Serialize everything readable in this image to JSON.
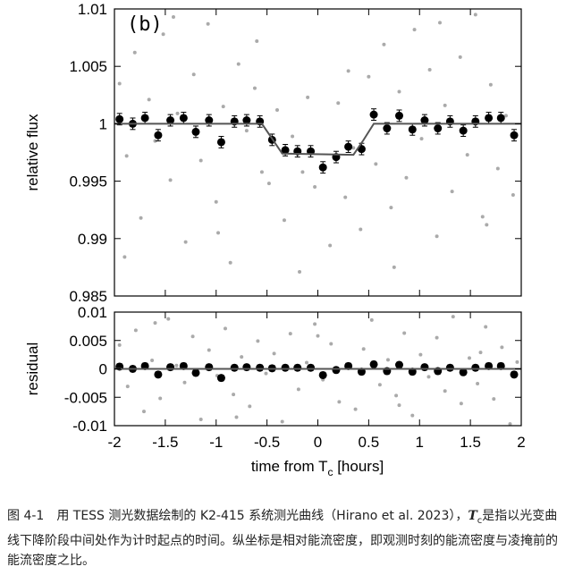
{
  "chart_data": [
    {
      "type": "scatter",
      "panel_label": "(b)",
      "ylabel": "relative flux",
      "xlim": [
        -2,
        2
      ],
      "ylim": [
        0.985,
        1.01
      ],
      "xticks": [
        -2,
        -1.5,
        -1,
        -0.5,
        0,
        0.5,
        1,
        1.5,
        2
      ],
      "yticks": [
        0.985,
        0.99,
        0.995,
        1,
        1.005,
        1.01
      ],
      "series": [
        {
          "mark": "dot",
          "color": "#aaaaaa",
          "x": [
            -1.95,
            -1.88,
            -1.8,
            -1.74,
            -1.66,
            -1.6,
            -1.52,
            -1.45,
            -1.38,
            -1.3,
            -1.22,
            -1.15,
            -1.08,
            -1.0,
            -0.93,
            -0.86,
            -0.78,
            -0.7,
            -0.62,
            -0.55,
            -0.48,
            -0.4,
            -0.33,
            -0.25,
            -0.18,
            -0.1,
            -0.03,
            0.05,
            0.12,
            0.2,
            0.27,
            0.35,
            0.42,
            0.5,
            0.57,
            0.65,
            0.72,
            0.8,
            0.87,
            0.95,
            1.02,
            1.1,
            1.17,
            1.25,
            1.32,
            1.4,
            1.47,
            1.55,
            1.62,
            1.7,
            1.77,
            1.85,
            1.92,
            -1.9,
            -1.42,
            -0.98,
            -0.6,
            -0.15,
            0.3,
            0.75,
            1.2,
            1.66
          ],
          "values": [
            1.0035,
            0.9972,
            1.0062,
            0.9918,
            1.0021,
            0.9985,
            1.0078,
            0.9951,
            1.0009,
            0.9897,
            1.0043,
            0.9968,
            1.0087,
            0.9932,
            1.0015,
            0.9879,
            1.0052,
            0.9994,
            1.0031,
            0.9958,
            0.9948,
            1.0012,
            0.9916,
            0.9989,
            0.9871,
            1.0023,
            0.9945,
            0.9962,
            0.9894,
            1.0018,
            0.9936,
            0.9979,
            0.9908,
            1.0041,
            0.9965,
            1.0069,
            0.9927,
            1.0028,
            0.9953,
            1.0082,
            0.9987,
            1.0047,
            0.9902,
            1.0016,
            0.9941,
            1.0058,
            0.9973,
            1.0095,
            0.9919,
            1.0034,
            0.9961,
            1.0007,
            0.9938,
            0.9884,
            1.0093,
            0.9905,
            1.0072,
            0.9958,
            1.0046,
            0.9875,
            1.0088,
            0.9912
          ]
        },
        {
          "mark": "errorbar",
          "color": "#000000",
          "x": [
            -1.95,
            -1.82,
            -1.7,
            -1.57,
            -1.45,
            -1.32,
            -1.2,
            -1.07,
            -0.95,
            -0.82,
            -0.7,
            -0.57,
            -0.45,
            -0.32,
            -0.2,
            -0.07,
            0.05,
            0.18,
            0.3,
            0.43,
            0.55,
            0.68,
            0.8,
            0.93,
            1.05,
            1.18,
            1.3,
            1.43,
            1.55,
            1.68,
            1.8,
            1.93
          ],
          "values": [
            1.0004,
            1.0,
            1.0005,
            0.999,
            1.0003,
            1.0005,
            0.9993,
            1.0003,
            0.9984,
            1.0002,
            1.0003,
            1.0002,
            0.9986,
            0.9977,
            0.9976,
            0.9976,
            0.9962,
            0.9971,
            0.998,
            0.9978,
            1.0008,
            0.9996,
            1.0007,
            0.9995,
            1.0003,
            0.9996,
            1.0002,
            0.9994,
            1.0002,
            1.0005,
            1.0005,
            0.999
          ],
          "errors": [
            0.0005,
            0.0005,
            0.0005,
            0.0005,
            0.0005,
            0.0005,
            0.0005,
            0.0005,
            0.0005,
            0.0005,
            0.0005,
            0.0005,
            0.0005,
            0.0005,
            0.0005,
            0.0005,
            0.0005,
            0.0005,
            0.0005,
            0.0005,
            0.0005,
            0.0005,
            0.0005,
            0.0005,
            0.0005,
            0.0005,
            0.0005,
            0.0005,
            0.0005,
            0.0005,
            0.0005,
            0.0005
          ]
        },
        {
          "mark": "line",
          "color": "#555555",
          "x": [
            -2,
            -0.55,
            -0.45,
            -0.35,
            0.35,
            0.45,
            0.55,
            2
          ],
          "values": [
            1.0,
            1.0,
            0.9987,
            0.9974,
            0.9973,
            0.9986,
            1.0,
            1.0
          ]
        }
      ]
    },
    {
      "type": "scatter",
      "ylabel": "residual",
      "xlabel": [
        "time from T",
        "c",
        " [hours]"
      ],
      "xlim": [
        -2,
        2
      ],
      "ylim": [
        -0.01,
        0.01
      ],
      "xticks": [
        -2,
        -1.5,
        -1,
        -0.5,
        0,
        0.5,
        1,
        1.5,
        2
      ],
      "yticks": [
        -0.01,
        -0.005,
        0,
        0.005,
        0.01
      ],
      "series": [
        {
          "mark": "dot",
          "color": "#aaaaaa",
          "x": [
            -1.95,
            -1.87,
            -1.79,
            -1.71,
            -1.63,
            -1.55,
            -1.47,
            -1.39,
            -1.31,
            -1.23,
            -1.15,
            -1.07,
            -0.99,
            -0.91,
            -0.83,
            -0.75,
            -0.67,
            -0.59,
            -0.51,
            -0.43,
            -0.35,
            -0.27,
            -0.19,
            -0.11,
            -0.03,
            0.05,
            0.13,
            0.21,
            0.29,
            0.37,
            0.45,
            0.53,
            0.61,
            0.69,
            0.77,
            0.85,
            0.93,
            1.01,
            1.09,
            1.17,
            1.25,
            1.33,
            1.41,
            1.49,
            1.57,
            1.65,
            1.73,
            1.81,
            1.89,
            1.96,
            -1.6,
            -0.8,
            0.0,
            0.8,
            1.6
          ],
          "values": [
            0.0042,
            -0.0031,
            0.0068,
            -0.0075,
            0.0015,
            -0.0052,
            0.0088,
            0.0006,
            -0.0024,
            0.0057,
            -0.0089,
            0.0033,
            -0.0012,
            0.0071,
            -0.0045,
            0.0021,
            -0.0066,
            0.0049,
            -0.0008,
            0.0027,
            -0.0093,
            0.0062,
            -0.0036,
            0.0011,
            0.0079,
            -0.0019,
            0.0044,
            -0.0058,
            0.0008,
            -0.0071,
            0.0035,
            0.0086,
            -0.0028,
            0.0016,
            -0.0047,
            0.0063,
            -0.0082,
            0.0025,
            -0.0014,
            0.0055,
            -0.0039,
            0.0092,
            -0.0061,
            0.0019,
            -0.0026,
            0.0074,
            -0.0053,
            0.0038,
            -0.0097,
            0.0012,
            0.0081,
            -0.0085,
            0.0058,
            -0.0064,
            0.0029
          ]
        },
        {
          "mark": "errorbar",
          "color": "#000000",
          "x": [
            -1.95,
            -1.82,
            -1.7,
            -1.57,
            -1.45,
            -1.32,
            -1.2,
            -1.07,
            -0.95,
            -0.82,
            -0.7,
            -0.57,
            -0.45,
            -0.32,
            -0.2,
            -0.07,
            0.05,
            0.18,
            0.3,
            0.43,
            0.55,
            0.68,
            0.8,
            0.93,
            1.05,
            1.18,
            1.3,
            1.43,
            1.55,
            1.68,
            1.8,
            1.93
          ],
          "values": [
            0.0004,
            0.0,
            0.0005,
            -0.001,
            0.0003,
            0.0005,
            -0.0007,
            0.0003,
            -0.0016,
            0.0002,
            0.0003,
            0.0002,
            0.0001,
            0.0002,
            0.0002,
            0.0002,
            -0.0011,
            -0.0002,
            0.0005,
            -0.0005,
            0.0008,
            -0.0004,
            0.0007,
            -0.0005,
            0.0003,
            -0.0004,
            0.0002,
            -0.0006,
            0.0002,
            0.0005,
            0.0005,
            -0.001
          ],
          "errors": [
            0.0005,
            0.0005,
            0.0005,
            0.0005,
            0.0005,
            0.0005,
            0.0005,
            0.0005,
            0.0005,
            0.0005,
            0.0005,
            0.0005,
            0.0005,
            0.0005,
            0.0005,
            0.0005,
            0.0005,
            0.0005,
            0.0005,
            0.0005,
            0.0005,
            0.0005,
            0.0005,
            0.0005,
            0.0005,
            0.0005,
            0.0005,
            0.0005,
            0.0005,
            0.0005,
            0.0005,
            0.0005
          ]
        },
        {
          "mark": "line",
          "color": "#555555",
          "x": [
            -2,
            2
          ],
          "values": [
            0,
            0
          ]
        }
      ]
    }
  ],
  "caption": {
    "label": "图 4-1",
    "text": "用 TESS 测光数据绘制的 K2-415 系统测光曲线（Hirano et al. 2023），",
    "symbol": "T",
    "symbol_sub": "c",
    "rest": "是指以光变曲线下降阶段中间处作为计时起点的时间。纵坐标是相对能流密度，即观测时刻的能流密度与凌掩前的能流密度之比。"
  }
}
